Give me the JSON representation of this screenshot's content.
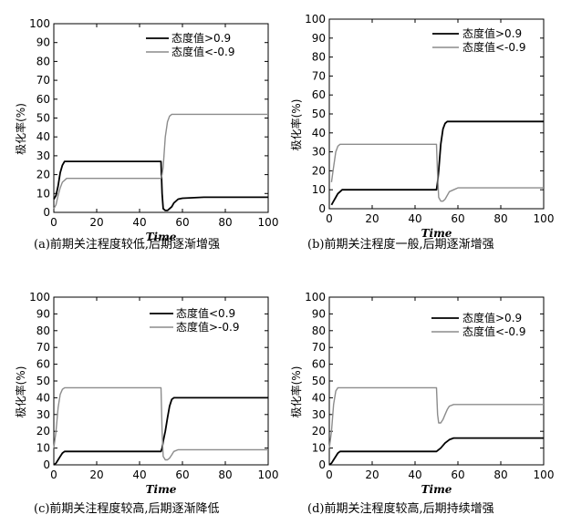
{
  "colors": {
    "dark": "#000000",
    "light": "#8c8c8c"
  },
  "chart_data": [
    {
      "type": "line",
      "panel": "a",
      "caption": "(a)前期关注程度较低,后期逐渐增强",
      "xlabel": "Time",
      "ylabel": "极化率(%)",
      "xlim": [
        0,
        100
      ],
      "ylim": [
        0,
        100
      ],
      "xticks": [
        "0",
        "20",
        "40",
        "60",
        "80",
        "100"
      ],
      "yticks": [
        "0",
        "10",
        "20",
        "30",
        "40",
        "50",
        "60",
        "70",
        "80",
        "90",
        "100"
      ],
      "legend_position": "top-right",
      "series": [
        {
          "name": "态度值>0.9",
          "color": "#000000",
          "x": [
            0,
            1,
            2,
            3,
            4,
            5,
            6,
            10,
            20,
            30,
            40,
            50,
            50.5,
            51,
            52,
            53,
            54,
            55,
            56,
            58,
            60,
            70,
            80,
            90,
            100
          ],
          "y": [
            7,
            9,
            14,
            21,
            25,
            27,
            27,
            27,
            27,
            27,
            27,
            27,
            10,
            2,
            1,
            1,
            2,
            3,
            5,
            7,
            7.5,
            8,
            8,
            8,
            8
          ]
        },
        {
          "name": "态度值<-0.9",
          "color": "#8c8c8c",
          "x": [
            0,
            1,
            2,
            3,
            4,
            5,
            6,
            10,
            20,
            30,
            40,
            50,
            50.5,
            51,
            52,
            53,
            54,
            55,
            56,
            58,
            60,
            70,
            80,
            90,
            100
          ],
          "y": [
            2,
            4,
            9,
            13,
            16,
            17,
            18,
            18,
            18,
            18,
            18,
            18,
            20,
            24,
            40,
            48,
            51,
            52,
            52,
            52,
            52,
            52,
            52,
            52,
            52
          ]
        }
      ]
    },
    {
      "type": "line",
      "panel": "b",
      "caption": "(b)前期关注程度一般,后期逐渐增强",
      "xlabel": "Time",
      "ylabel": "极化率(%)",
      "xlim": [
        0,
        100
      ],
      "ylim": [
        0,
        100
      ],
      "xticks": [
        "0",
        "20",
        "40",
        "60",
        "80",
        "100"
      ],
      "yticks": [
        "0",
        "10",
        "20",
        "30",
        "40",
        "50",
        "60",
        "70",
        "80",
        "90",
        "100"
      ],
      "legend_position": "top-right",
      "series": [
        {
          "name": "态度值>0.9",
          "color": "#000000",
          "x": [
            1,
            2,
            3,
            4,
            5,
            6,
            8,
            10,
            20,
            30,
            40,
            50,
            50.5,
            51,
            52,
            53,
            54,
            55,
            56,
            58,
            60,
            70,
            80,
            90,
            100
          ],
          "y": [
            2,
            4,
            6,
            8,
            9,
            10,
            10,
            10,
            10,
            10,
            10,
            10,
            14,
            20,
            34,
            42,
            45,
            46,
            46,
            46,
            46,
            46,
            46,
            46,
            46
          ]
        },
        {
          "name": "态度值<-0.9",
          "color": "#8c8c8c",
          "x": [
            1,
            2,
            3,
            4,
            5,
            6,
            8,
            10,
            20,
            30,
            40,
            50,
            50.5,
            51,
            52,
            53,
            54,
            55,
            56,
            58,
            60,
            70,
            80,
            90,
            100
          ],
          "y": [
            14,
            22,
            30,
            33,
            34,
            34,
            34,
            34,
            34,
            34,
            34,
            34,
            18,
            6,
            4,
            4,
            5,
            7,
            9,
            10,
            11,
            11,
            11,
            11,
            11
          ]
        }
      ]
    },
    {
      "type": "line",
      "panel": "c",
      "caption": "(c)前期关注程度较高,后期逐渐降低",
      "xlabel": "Time",
      "ylabel": "极化率(%)",
      "xlim": [
        0,
        100
      ],
      "ylim": [
        0,
        100
      ],
      "xticks": [
        "0",
        "20",
        "40",
        "60",
        "80",
        "100"
      ],
      "yticks": [
        "0",
        "10",
        "20",
        "30",
        "40",
        "50",
        "60",
        "70",
        "80",
        "90",
        "100"
      ],
      "legend_position": "top-right",
      "series": [
        {
          "name": "态度值<0.9",
          "color": "#000000",
          "x": [
            0,
            1,
            2,
            3,
            4,
            5,
            6,
            8,
            10,
            20,
            30,
            40,
            50,
            50.5,
            51,
            52,
            53,
            54,
            55,
            56,
            58,
            60,
            70,
            80,
            90,
            100
          ],
          "y": [
            0,
            1,
            3,
            5,
            7,
            8,
            8,
            8,
            8,
            8,
            8,
            8,
            8,
            10,
            14,
            20,
            28,
            35,
            39,
            40,
            40,
            40,
            40,
            40,
            40,
            40
          ]
        },
        {
          "name": "态度值>-0.9",
          "color": "#8c8c8c",
          "x": [
            0,
            1,
            2,
            3,
            4,
            5,
            6,
            8,
            10,
            20,
            30,
            40,
            50,
            50.5,
            51,
            52,
            53,
            54,
            55,
            56,
            58,
            60,
            70,
            80,
            90,
            100
          ],
          "y": [
            10,
            20,
            34,
            42,
            45,
            46,
            46,
            46,
            46,
            46,
            46,
            46,
            46,
            20,
            5,
            3,
            3,
            4,
            6,
            8,
            9,
            9,
            9,
            9,
            9,
            9
          ]
        }
      ]
    },
    {
      "type": "line",
      "panel": "d",
      "caption": "(d)前期关注程度较高,后期持续增强",
      "xlabel": "Time",
      "ylabel": "极化率(%)",
      "xlim": [
        0,
        100
      ],
      "ylim": [
        0,
        100
      ],
      "xticks": [
        "0",
        "20",
        "40",
        "60",
        "80",
        "100"
      ],
      "yticks": [
        "0",
        "10",
        "20",
        "30",
        "40",
        "50",
        "60",
        "70",
        "80",
        "90",
        "100"
      ],
      "legend_position": "top-right",
      "series": [
        {
          "name": "态度值>0.9",
          "color": "#000000",
          "x": [
            0,
            1,
            2,
            3,
            4,
            5,
            6,
            8,
            10,
            20,
            30,
            40,
            50,
            52,
            54,
            56,
            58,
            60,
            70,
            80,
            90,
            100
          ],
          "y": [
            0,
            1,
            3,
            5,
            7,
            8,
            8,
            8,
            8,
            8,
            8,
            8,
            8,
            10,
            13,
            15,
            16,
            16,
            16,
            16,
            16,
            16
          ]
        },
        {
          "name": "态度值<-0.9",
          "color": "#8c8c8c",
          "x": [
            0,
            1,
            2,
            3,
            4,
            5,
            6,
            8,
            10,
            20,
            30,
            40,
            50,
            50.5,
            51,
            52,
            53,
            54,
            55,
            56,
            58,
            60,
            70,
            80,
            90,
            100
          ],
          "y": [
            10,
            20,
            36,
            44,
            46,
            46,
            46,
            46,
            46,
            46,
            46,
            46,
            46,
            30,
            25,
            25,
            27,
            30,
            33,
            35,
            36,
            36,
            36,
            36,
            36,
            36
          ]
        }
      ]
    }
  ]
}
